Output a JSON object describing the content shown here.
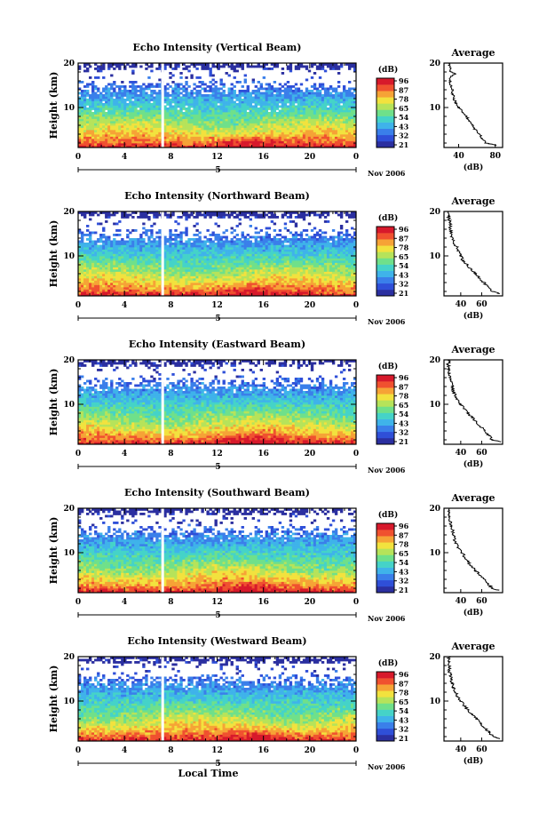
{
  "colorbar": {
    "unit": "(dB)",
    "ticks": [
      "96",
      "87",
      "78",
      "65",
      "54",
      "43",
      "32",
      "21"
    ],
    "colors": [
      "#2b2fa0",
      "#2f4fd8",
      "#3a7fea",
      "#3fb3ea",
      "#45d3c8",
      "#6fe08a",
      "#b6e35a",
      "#f2e23e",
      "#f6a336",
      "#f0512f",
      "#d7192b"
    ]
  },
  "date_label": "Nov 2006",
  "day_label": "5",
  "xlabel": "Local Time",
  "chart_data": [
    {
      "type": "heatmap",
      "title": "Echo Intensity (Vertical Beam)",
      "ylabel": "Height (km)",
      "x_ticks": [
        "0",
        "4",
        "8",
        "12",
        "16",
        "20",
        "0"
      ],
      "y_ticks": [
        "20",
        "10"
      ],
      "xlim": [
        0,
        24
      ],
      "ylim": [
        1,
        20
      ],
      "gap_hour": 7.3,
      "echo_top_km": 18.5,
      "profile": {
        "title": "Average",
        "xlabel": "(dB)",
        "x_ticks": [
          "40",
          "80"
        ],
        "y_ticks": [
          "20",
          "10"
        ],
        "xlim": [
          24,
          88
        ],
        "height": [
          1.5,
          2,
          3,
          4,
          5,
          6,
          7,
          8,
          9,
          10,
          11,
          12,
          13,
          14,
          15,
          16,
          17,
          17.5,
          18,
          19,
          20
        ],
        "db": [
          82,
          70,
          66,
          63,
          58,
          55,
          52,
          48,
          44,
          40,
          37,
          35,
          34,
          33,
          32,
          30,
          31,
          37,
          32,
          30,
          30
        ]
      }
    },
    {
      "type": "heatmap",
      "title": "Echo Intensity (Northward Beam)",
      "ylabel": "Height (km)",
      "x_ticks": [
        "0",
        "4",
        "8",
        "12",
        "16",
        "20",
        "0"
      ],
      "y_ticks": [
        "20",
        "10"
      ],
      "xlim": [
        0,
        24
      ],
      "ylim": [
        1,
        20
      ],
      "gap_hour": 7.3,
      "echo_top_km": 18.5,
      "profile": {
        "title": "Average",
        "xlabel": "(dB)",
        "x_ticks": [
          "40",
          "60"
        ],
        "y_ticks": [
          "20",
          "10"
        ],
        "xlim": [
          24,
          80
        ],
        "height": [
          1.5,
          2,
          3,
          4,
          5,
          6,
          7,
          8,
          9,
          10,
          11,
          12,
          13,
          14,
          15,
          16,
          17,
          18,
          19,
          20
        ],
        "db": [
          78,
          70,
          66,
          62,
          58,
          54,
          50,
          46,
          42,
          40,
          38,
          36,
          33,
          32,
          31,
          30,
          30,
          29,
          28,
          29
        ]
      }
    },
    {
      "type": "heatmap",
      "title": "Echo Intensity (Eastward Beam)",
      "ylabel": "Height (km)",
      "x_ticks": [
        "0",
        "4",
        "8",
        "12",
        "16",
        "20",
        "0"
      ],
      "y_ticks": [
        "20",
        "10"
      ],
      "xlim": [
        0,
        24
      ],
      "ylim": [
        1,
        20
      ],
      "gap_hour": 7.3,
      "echo_top_km": 18.5,
      "profile": {
        "title": "Average",
        "xlabel": "(dB)",
        "x_ticks": [
          "40",
          "60"
        ],
        "y_ticks": [
          "20",
          "10"
        ],
        "xlim": [
          24,
          80
        ],
        "height": [
          1.5,
          2,
          3,
          4,
          5,
          6,
          7,
          8,
          9,
          10,
          11,
          12,
          13,
          14,
          15,
          16,
          17,
          18,
          19,
          20
        ],
        "db": [
          78,
          70,
          67,
          63,
          59,
          55,
          51,
          47,
          43,
          40,
          37,
          35,
          33,
          32,
          31,
          30,
          29,
          29,
          28,
          29
        ]
      }
    },
    {
      "type": "heatmap",
      "title": "Echo Intensity (Southward Beam)",
      "ylabel": "Height (km)",
      "x_ticks": [
        "0",
        "4",
        "8",
        "12",
        "16",
        "20",
        "0"
      ],
      "y_ticks": [
        "20",
        "10"
      ],
      "xlim": [
        0,
        24
      ],
      "ylim": [
        1,
        20
      ],
      "gap_hour": 7.3,
      "echo_top_km": 18.5,
      "profile": {
        "title": "Average",
        "xlabel": "(dB)",
        "x_ticks": [
          "40",
          "60"
        ],
        "y_ticks": [
          "20",
          "10"
        ],
        "xlim": [
          24,
          80
        ],
        "height": [
          1.5,
          2,
          3,
          4,
          5,
          6,
          7,
          8,
          9,
          10,
          11,
          12,
          13,
          14,
          15,
          16,
          17,
          18,
          19,
          20
        ],
        "db": [
          77,
          70,
          66,
          62,
          58,
          54,
          50,
          47,
          44,
          41,
          38,
          36,
          34,
          33,
          32,
          31,
          30,
          29,
          28,
          29
        ]
      }
    },
    {
      "type": "heatmap",
      "title": "Echo Intensity (Westward Beam)",
      "ylabel": "Height (km)",
      "x_ticks": [
        "0",
        "4",
        "8",
        "12",
        "16",
        "20",
        "0"
      ],
      "y_ticks": [
        "20",
        "10"
      ],
      "xlim": [
        0,
        24
      ],
      "ylim": [
        1,
        20
      ],
      "gap_hour": 7.3,
      "echo_top_km": 18.5,
      "profile": {
        "title": "Average",
        "xlabel": "(dB)",
        "x_ticks": [
          "40",
          "60"
        ],
        "y_ticks": [
          "20",
          "10"
        ],
        "xlim": [
          24,
          80
        ],
        "height": [
          1.5,
          2,
          3,
          4,
          5,
          6,
          7,
          8,
          9,
          10,
          11,
          12,
          13,
          14,
          15,
          16,
          17,
          18,
          19,
          20
        ],
        "db": [
          78,
          71,
          67,
          63,
          59,
          55,
          51,
          47,
          43,
          40,
          37,
          35,
          33,
          32,
          31,
          30,
          29,
          29,
          28,
          29
        ]
      }
    }
  ]
}
